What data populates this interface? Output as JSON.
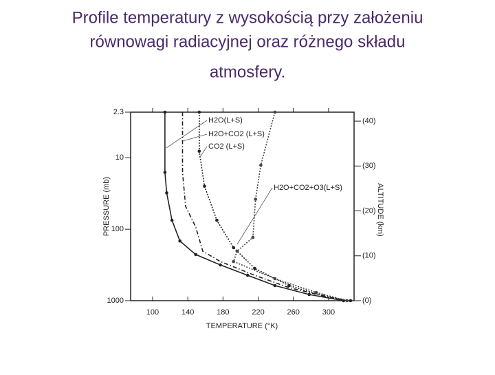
{
  "chart_data": {
    "type": "line",
    "title": [
      "Profile temperatury z wysokością przy założeniu",
      "równowagi radiacyjnej oraz różnego składu",
      "atmosfery."
    ],
    "x_label": "TEMPERATURE (°K)",
    "y_label": "PRESSURE (mb)",
    "y2_label": "ALTITUDE (km)",
    "xlim": [
      75,
      329
    ],
    "xticks": [
      100,
      140,
      180,
      220,
      260,
      300
    ],
    "ylim": [
      1000,
      2.3
    ],
    "yticks": [
      2.3,
      10,
      100,
      1000
    ],
    "y_log": true,
    "y2lim": [
      0,
      42
    ],
    "y2ticks": [
      {
        "value": 0,
        "label": "(0)"
      },
      {
        "value": 10,
        "label": "(10)"
      },
      {
        "value": 20,
        "label": "(20)"
      },
      {
        "value": 30,
        "label": "(30)"
      },
      {
        "value": 40,
        "label": "(40)"
      }
    ],
    "series": [
      {
        "name": "H2O(L+S)",
        "color": "#222222",
        "line_style": "solid",
        "markers": true,
        "x": [
          114,
          114,
          116,
          122,
          131,
          149,
          177,
          208,
          239,
          278,
          317
        ],
        "values": [
          2.3,
          16,
          31,
          75,
          146,
          226,
          316,
          441,
          614,
          819,
          1000
        ]
      },
      {
        "name": "H2O+CO2 (L+S)",
        "color": "#222222",
        "line_style": "dashdot",
        "markers": false,
        "x": [
          134,
          134,
          137.5,
          149,
          157,
          177,
          216,
          255,
          294,
          321
        ],
        "values": [
          2.3,
          16,
          48,
          93,
          203,
          283,
          441,
          656,
          857,
          1000
        ]
      },
      {
        "name": "CO2 (L+S)",
        "color": "#222222",
        "line_style": "dotted",
        "markers": true,
        "x": [
          153,
          153,
          159,
          173,
          192,
          216,
          255,
          294,
          325
        ],
        "values": [
          2.3,
          8.1,
          25,
          75,
          181,
          353,
          614,
          857,
          1000
        ]
      },
      {
        "name": "H2O+CO2+O3(L+S)",
        "color": "#444444",
        "line_style": "dotted",
        "markers": true,
        "x": [
          239,
          223,
          217,
          214,
          196,
          192,
          239,
          286,
          321
        ],
        "values": [
          2.3,
          12.7,
          38,
          130,
          203,
          283,
          492,
          767,
          1000
        ]
      }
    ]
  }
}
